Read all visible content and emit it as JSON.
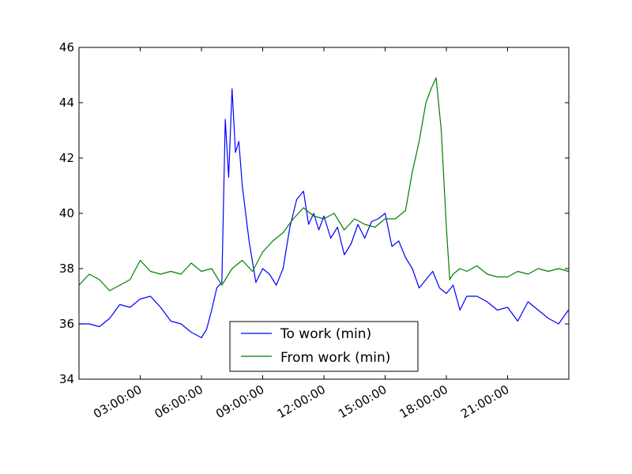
{
  "chart_data": {
    "type": "line",
    "title": "",
    "xlabel": "",
    "ylabel": "",
    "x_unit": "time of day",
    "x_range": [
      "00:00:00",
      "24:00:00"
    ],
    "ylim": [
      34,
      46
    ],
    "yticks": [
      "34",
      "36",
      "38",
      "40",
      "42",
      "44",
      "46"
    ],
    "xticks": [
      "03:00:00",
      "06:00:00",
      "09:00:00",
      "12:00:00",
      "15:00:00",
      "18:00:00",
      "21:00:00"
    ],
    "grid": false,
    "legend_placement": "lower center",
    "series": [
      {
        "name": "To work (min)",
        "color": "#0000ff",
        "x": [
          "00:00",
          "00:30",
          "01:00",
          "01:30",
          "02:00",
          "02:30",
          "03:00",
          "03:30",
          "04:00",
          "04:30",
          "05:00",
          "05:30",
          "06:00",
          "06:15",
          "06:30",
          "06:45",
          "07:00",
          "07:10",
          "07:20",
          "07:30",
          "07:40",
          "07:50",
          "08:00",
          "08:20",
          "08:40",
          "09:00",
          "09:20",
          "09:40",
          "10:00",
          "10:20",
          "10:40",
          "11:00",
          "11:15",
          "11:30",
          "11:45",
          "12:00",
          "12:20",
          "12:40",
          "13:00",
          "13:20",
          "13:40",
          "14:00",
          "14:20",
          "14:40",
          "15:00",
          "15:20",
          "15:40",
          "16:00",
          "16:20",
          "16:40",
          "17:00",
          "17:20",
          "17:40",
          "18:00",
          "18:20",
          "18:40",
          "19:00",
          "19:30",
          "20:00",
          "20:30",
          "21:00",
          "21:30",
          "22:00",
          "22:30",
          "23:00",
          "23:30",
          "23:59"
        ],
        "values": [
          36.0,
          36.0,
          35.9,
          36.2,
          36.7,
          36.6,
          36.9,
          37.0,
          36.6,
          36.1,
          36.0,
          35.7,
          35.5,
          35.8,
          36.5,
          37.3,
          37.5,
          43.4,
          41.3,
          44.5,
          42.2,
          42.6,
          41.0,
          39.0,
          37.5,
          38.0,
          37.8,
          37.4,
          38.0,
          39.5,
          40.5,
          40.8,
          39.6,
          40.0,
          39.4,
          39.9,
          39.1,
          39.5,
          38.5,
          38.9,
          39.6,
          39.1,
          39.7,
          39.8,
          40.0,
          38.8,
          39.0,
          38.4,
          38.0,
          37.3,
          37.6,
          37.9,
          37.3,
          37.1,
          37.4,
          36.5,
          37.0,
          37.0,
          36.8,
          36.5,
          36.6,
          36.1,
          36.8,
          36.5,
          36.2,
          36.0,
          36.5
        ]
      },
      {
        "name": "From work (min)",
        "color": "#008000",
        "x": [
          "00:00",
          "00:30",
          "01:00",
          "01:30",
          "02:00",
          "02:30",
          "03:00",
          "03:30",
          "04:00",
          "04:30",
          "05:00",
          "05:30",
          "06:00",
          "06:30",
          "07:00",
          "07:30",
          "08:00",
          "08:30",
          "09:00",
          "09:30",
          "10:00",
          "10:30",
          "11:00",
          "11:30",
          "12:00",
          "12:30",
          "13:00",
          "13:30",
          "14:00",
          "14:30",
          "15:00",
          "15:30",
          "16:00",
          "16:20",
          "16:40",
          "17:00",
          "17:15",
          "17:30",
          "17:45",
          "18:00",
          "18:10",
          "18:20",
          "18:40",
          "19:00",
          "19:30",
          "20:00",
          "20:30",
          "21:00",
          "21:30",
          "22:00",
          "22:30",
          "23:00",
          "23:30",
          "23:59"
        ],
        "values": [
          37.4,
          37.8,
          37.6,
          37.2,
          37.4,
          37.6,
          38.3,
          37.9,
          37.8,
          37.9,
          37.8,
          38.2,
          37.9,
          38.0,
          37.4,
          38.0,
          38.3,
          37.9,
          38.6,
          39.0,
          39.3,
          39.8,
          40.2,
          39.9,
          39.8,
          40.0,
          39.4,
          39.8,
          39.6,
          39.5,
          39.8,
          39.8,
          40.1,
          41.5,
          42.6,
          44.0,
          44.5,
          44.9,
          43.0,
          39.5,
          37.6,
          37.8,
          38.0,
          37.9,
          38.1,
          37.8,
          37.7,
          37.7,
          37.9,
          37.8,
          38.0,
          37.9,
          38.0,
          37.9
        ]
      }
    ]
  }
}
